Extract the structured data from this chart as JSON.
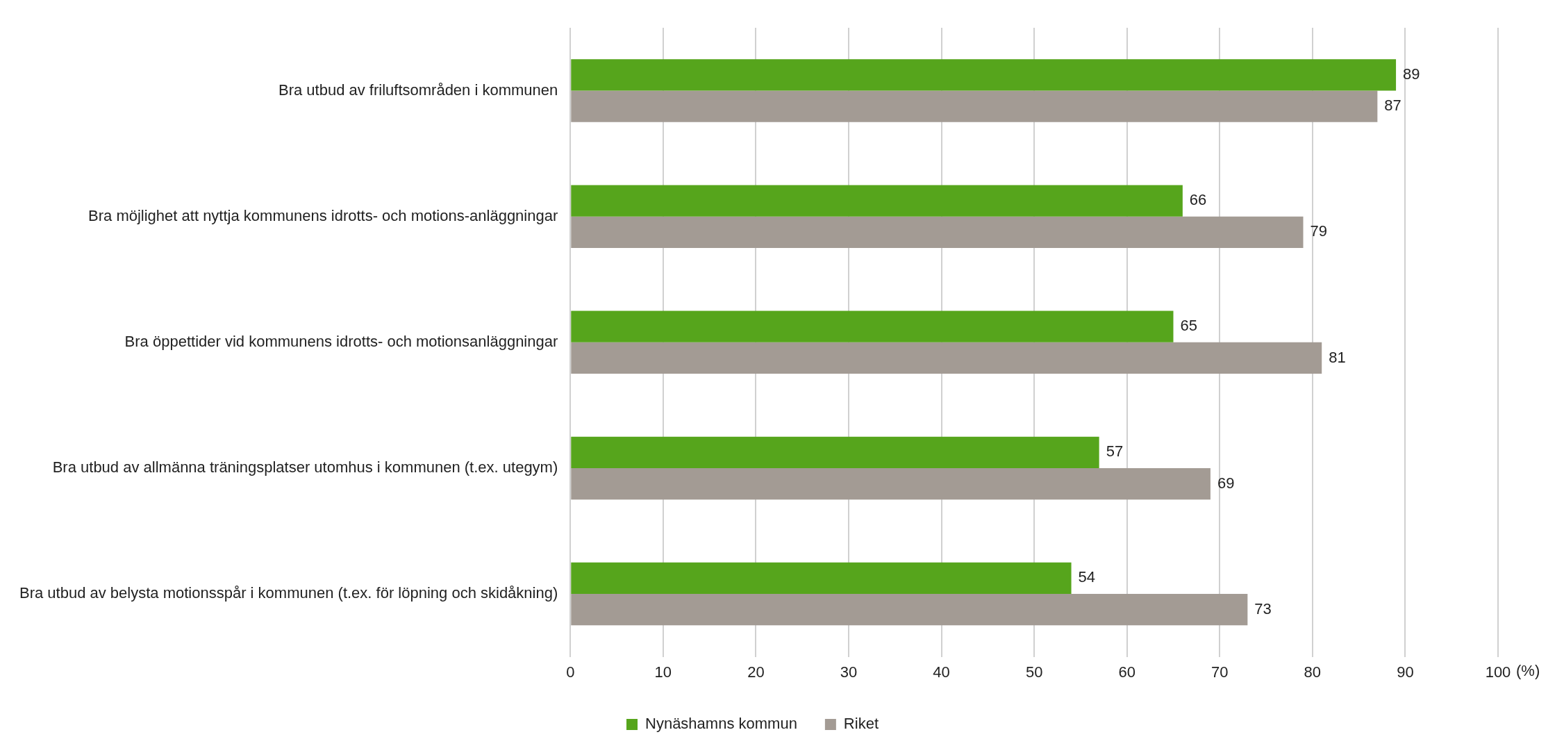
{
  "chart_data": {
    "type": "bar",
    "orientation": "horizontal",
    "xlabel": "(%)",
    "categories": [
      "Bra utbud av friluftsområden i kommunen",
      "Bra möjlighet att nyttja kommunens idrotts- och motions-anläggningar",
      "Bra öppettider vid kommunens idrotts- och motionsanläggningar",
      "Bra utbud av allmänna träningsplatser utomhus i kommunen (t.ex. utegym)",
      "Bra utbud av belysta motionsspår i kommunen (t.ex. för löpning och skidåkning)"
    ],
    "series": [
      {
        "name": "Nynäshamns kommun",
        "color": "#56a51c",
        "values": [
          89,
          66,
          65,
          57,
          54
        ]
      },
      {
        "name": "Riket",
        "color": "#a39b94",
        "values": [
          87,
          79,
          81,
          69,
          73
        ]
      }
    ],
    "xlim": [
      0,
      100
    ],
    "xticks": [
      0,
      10,
      20,
      30,
      40,
      50,
      60,
      70,
      80,
      90,
      100
    ],
    "grid": "x",
    "legend": "bottom",
    "data_labels": true
  }
}
